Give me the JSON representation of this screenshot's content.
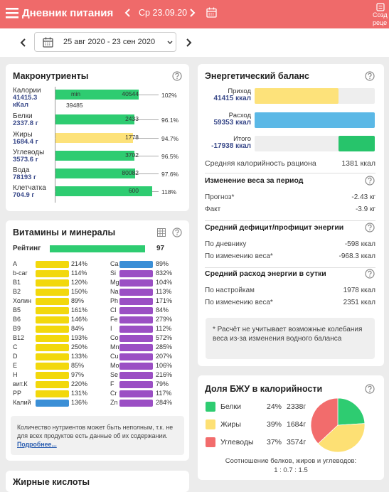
{
  "header": {
    "title": "Дневник питания",
    "date": "Ср 23.09.20",
    "create_button": [
      "Созд",
      "реце"
    ]
  },
  "date_range": "25 авг 2020 - 23 сен 2020",
  "macros": {
    "title": "Макронутриенты",
    "min_label": "min",
    "min_value": "39485",
    "rows": [
      {
        "name": "Калории",
        "amount": "41415.3",
        "unit": "кКал",
        "target": "40544",
        "percent": "102%",
        "color": "#2ecc71"
      },
      {
        "name": "Белки",
        "amount": "2337.8 г",
        "target": "2433",
        "percent": "96.1%",
        "color": "#2ecc71"
      },
      {
        "name": "Жиры",
        "amount": "1684.4 г",
        "target": "1778",
        "percent": "94.7%",
        "color": "#fde27a"
      },
      {
        "name": "Углеводы",
        "amount": "3573.6 г",
        "target": "3702",
        "percent": "96.5%",
        "color": "#2ecc71"
      },
      {
        "name": "Вода",
        "amount": "78193 г",
        "target": "80082",
        "percent": "97.6%",
        "color": "#2ecc71"
      },
      {
        "name": "Клетчатка",
        "amount": "704.9 г",
        "target": "600",
        "percent": "118%",
        "color": "#2ecc71"
      }
    ]
  },
  "vitamins": {
    "title": "Витамины и минералы",
    "rating_label": "Рейтинг",
    "rating": 97,
    "left_color": "#f2d80c",
    "right_color": "#9b4fc4",
    "left": [
      {
        "name": "A",
        "percent": "214%"
      },
      {
        "name": "b-car",
        "percent": "114%"
      },
      {
        "name": "B1",
        "percent": "120%"
      },
      {
        "name": "B2",
        "percent": "150%"
      },
      {
        "name": "Холин",
        "percent": "89%"
      },
      {
        "name": "B5",
        "percent": "161%"
      },
      {
        "name": "B6",
        "percent": "146%"
      },
      {
        "name": "B9",
        "percent": "84%"
      },
      {
        "name": "B12",
        "percent": "193%"
      },
      {
        "name": "C",
        "percent": "250%"
      },
      {
        "name": "D",
        "percent": "133%"
      },
      {
        "name": "E",
        "percent": "85%"
      },
      {
        "name": "H",
        "percent": "97%"
      },
      {
        "name": "вит.К",
        "percent": "220%"
      },
      {
        "name": "PP",
        "percent": "131%"
      },
      {
        "name": "Калий",
        "percent": "136%",
        "color": "#3b8fd6"
      }
    ],
    "right": [
      {
        "name": "Ca",
        "percent": "89%",
        "color": "#3b8fd6"
      },
      {
        "name": "Si",
        "percent": "832%"
      },
      {
        "name": "Mg",
        "percent": "104%"
      },
      {
        "name": "Na",
        "percent": "113%"
      },
      {
        "name": "Ph",
        "percent": "171%"
      },
      {
        "name": "Cl",
        "percent": "84%"
      },
      {
        "name": "Fe",
        "percent": "279%"
      },
      {
        "name": "I",
        "percent": "112%"
      },
      {
        "name": "Co",
        "percent": "572%"
      },
      {
        "name": "Mn",
        "percent": "285%"
      },
      {
        "name": "Cu",
        "percent": "207%"
      },
      {
        "name": "Mo",
        "percent": "106%"
      },
      {
        "name": "Se",
        "percent": "216%"
      },
      {
        "name": "F",
        "percent": "79%"
      },
      {
        "name": "Cr",
        "percent": "117%"
      },
      {
        "name": "Zn",
        "percent": "284%"
      }
    ],
    "note": "Количество нутриентов может быть неполным, т.к. не для всех продуктов есть данные об их содержании.",
    "note_link": "Подробнее..."
  },
  "fatty_acids": {
    "title": "Жирные кислоты"
  },
  "energy": {
    "title": "Энергетический баланс",
    "bars": [
      {
        "name": "Приход",
        "value": 41415,
        "value_label": "41415 ккал",
        "color": "#fde27a"
      },
      {
        "name": "Расход",
        "value": 59353,
        "value_label": "59353 ккал",
        "color": "#5bb8e6"
      },
      {
        "name": "Итого",
        "value": -17938,
        "value_label": "-17938 ккал",
        "color": "#27c46b"
      }
    ],
    "avg_label": "Средняя калорийность рациона",
    "avg_value": "1381 ккал",
    "sections": [
      {
        "title": "Изменение веса за период",
        "rows": [
          [
            "Прогноз*",
            "-2.43 кг"
          ],
          [
            "Факт",
            "-3.9 кг"
          ]
        ]
      },
      {
        "title": "Средний дефицит/профицит энергии",
        "rows": [
          [
            "По дневнику",
            "-598 ккал"
          ],
          [
            "По изменению веса*",
            "-968.3 ккал"
          ]
        ]
      },
      {
        "title": "Средний расход энергии в сутки",
        "rows": [
          [
            "По настройкам",
            "1978 ккал"
          ],
          [
            "По изменению веса*",
            "2351 ккал"
          ]
        ]
      }
    ],
    "note": "* Расчёт не учитывает возможные колебания веса из-за изменения водного баланса"
  },
  "bju": {
    "title": "Доля БЖУ в калорийности",
    "items": [
      {
        "name": "Белки",
        "value": 24,
        "value_label": "24%",
        "grams": "2338г",
        "color": "#2ecc71"
      },
      {
        "name": "Жиры",
        "value": 39,
        "value_label": "39%",
        "grams": "1684г",
        "color": "#fde074"
      },
      {
        "name": "Углеводы",
        "value": 37,
        "value_label": "37%",
        "grams": "3574г",
        "color": "#f26c6c"
      }
    ],
    "ratio_label": "Соотношение белков, жиров и углеводов:",
    "ratio": "1 : 0.7 : 1.5"
  }
}
